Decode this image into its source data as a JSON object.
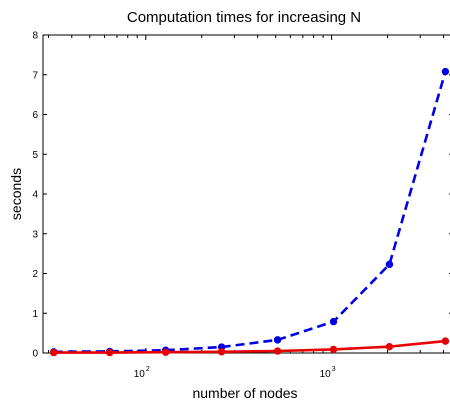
{
  "chart_data": {
    "type": "line",
    "title": "Computation times for increasing N",
    "xlabel": "number of nodes",
    "ylabel": "seconds",
    "xscale": "log",
    "xlim": [
      28,
      4500
    ],
    "ylim": [
      0,
      8
    ],
    "yticks": [
      0,
      1,
      2,
      3,
      4,
      5,
      6,
      7,
      8
    ],
    "xticks": [
      {
        "value": 100,
        "base": "10",
        "exp": "2"
      },
      {
        "value": 1000,
        "base": "10",
        "exp": "3"
      }
    ],
    "grid": false,
    "series": [
      {
        "color": "#0000e6",
        "line_style": "dashed",
        "marker": "circle",
        "x": [
          32,
          64,
          128,
          256,
          512,
          1024,
          2048,
          4096
        ],
        "y": [
          0.03,
          0.04,
          0.07,
          0.15,
          0.33,
          0.79,
          2.23,
          7.08
        ]
      },
      {
        "color": "#e60000",
        "line_style": "solid",
        "marker": "circle",
        "x": [
          32,
          64,
          128,
          256,
          512,
          1024,
          2048,
          4096
        ],
        "y": [
          0.01,
          0.01,
          0.02,
          0.03,
          0.05,
          0.09,
          0.16,
          0.3
        ]
      }
    ]
  }
}
